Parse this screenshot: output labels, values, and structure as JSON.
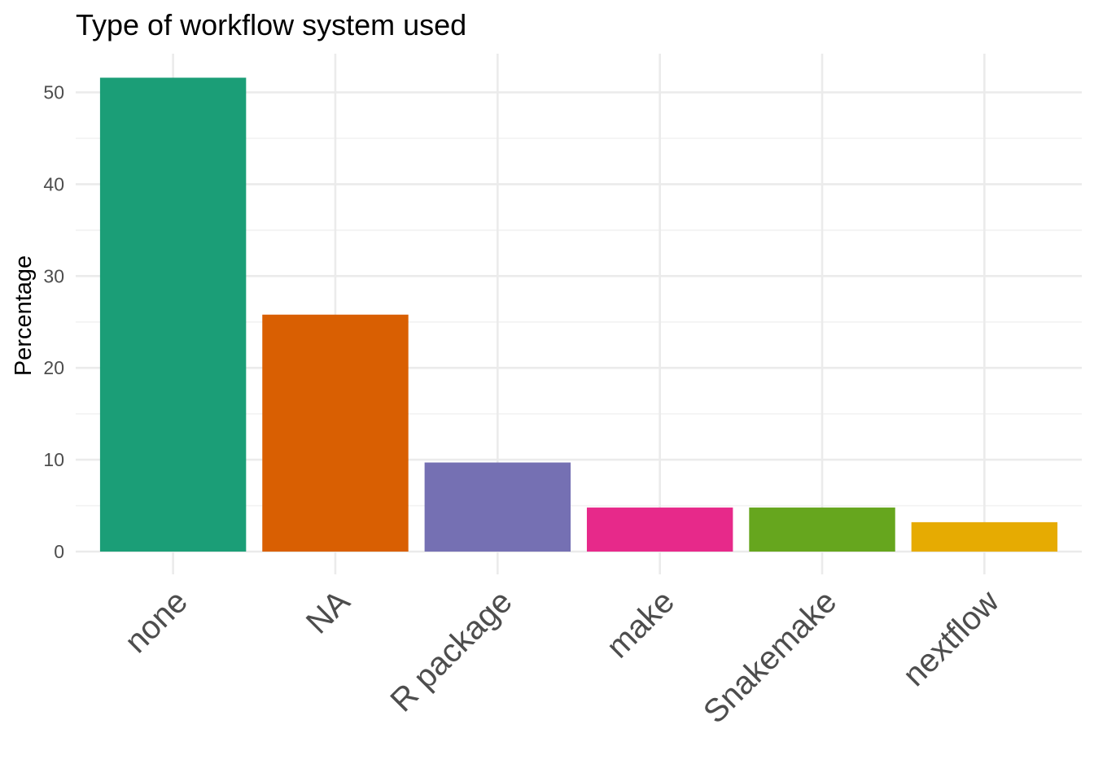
{
  "chart_data": {
    "type": "bar",
    "title": "Type of workflow system used",
    "xlabel": "",
    "ylabel": "Percentage",
    "categories": [
      "none",
      "NA",
      "R package",
      "make",
      "Snakemake",
      "nextflow"
    ],
    "values": [
      51.6,
      25.8,
      9.7,
      4.8,
      4.8,
      3.2
    ],
    "colors": [
      "#1b9e77",
      "#d95f02",
      "#7570b3",
      "#e7298a",
      "#66a61e",
      "#e6ab02"
    ],
    "ylim": [
      0,
      54.2
    ],
    "yticks": [
      0,
      10,
      20,
      30,
      40,
      50
    ],
    "grid": true,
    "legend": "none"
  }
}
